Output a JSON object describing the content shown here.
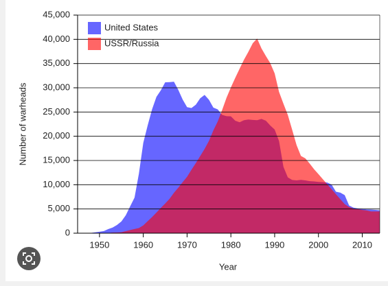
{
  "chart_data": {
    "type": "area",
    "x_label": "Year",
    "y_label": "Number of warheads",
    "x": [
      1945,
      1946,
      1947,
      1948,
      1949,
      1950,
      1951,
      1952,
      1953,
      1954,
      1955,
      1956,
      1957,
      1958,
      1959,
      1960,
      1961,
      1962,
      1963,
      1964,
      1965,
      1966,
      1967,
      1968,
      1969,
      1970,
      1971,
      1972,
      1973,
      1974,
      1975,
      1976,
      1977,
      1978,
      1979,
      1980,
      1981,
      1982,
      1983,
      1984,
      1985,
      1986,
      1987,
      1988,
      1989,
      1990,
      1991,
      1992,
      1993,
      1994,
      1995,
      1996,
      1997,
      1998,
      1999,
      2000,
      2001,
      2002,
      2003,
      2004,
      2005,
      2006,
      2007,
      2008,
      2009,
      2010,
      2011,
      2012,
      2013,
      2014
    ],
    "series": [
      {
        "name": "United States",
        "color": "#0000ff",
        "values": [
          2,
          9,
          13,
          50,
          170,
          299,
          438,
          841,
          1169,
          1703,
          2422,
          3692,
          5543,
          7345,
          12298,
          18638,
          22229,
          25540,
          28133,
          29463,
          31139,
          31175,
          31255,
          29561,
          27552,
          26008,
          25830,
          26516,
          27835,
          28537,
          27519,
          25914,
          25542,
          24418,
          24138,
          24104,
          23208,
          22886,
          23305,
          23459,
          23368,
          23317,
          23575,
          23205,
          22217,
          21392,
          19008,
          13708,
          11511,
          10979,
          10904,
          11011,
          10903,
          10732,
          10685,
          10577,
          10526,
          10457,
          10027,
          8570,
          8360,
          7853,
          5709,
          5273,
          5113,
          5066,
          4897,
          4881,
          4804,
          4717
        ]
      },
      {
        "name": "USSR/Russia",
        "color": "#ff0000",
        "values": [
          0,
          0,
          0,
          0,
          1,
          5,
          25,
          50,
          120,
          150,
          200,
          426,
          660,
          869,
          1060,
          1605,
          2471,
          3322,
          4238,
          5221,
          6129,
          7089,
          8339,
          9399,
          10538,
          11643,
          13092,
          14478,
          15915,
          17385,
          19055,
          21205,
          23044,
          25393,
          27935,
          30062,
          32049,
          33952,
          35804,
          37431,
          39197,
          40159,
          38107,
          36538,
          35078,
          32980,
          29154,
          26734,
          24403,
          21339,
          18179,
          15942,
          15442,
          14368,
          13188,
          12188,
          11152,
          10114,
          9076,
          8038,
          7000,
          6000,
          5400,
          5100,
          4950,
          4800,
          4700,
          4500,
          4500,
          4500
        ]
      }
    ],
    "opacity": 0.6,
    "xlim": [
      1945,
      2014
    ],
    "xticks": [
      1950,
      1960,
      1970,
      1980,
      1990,
      2000,
      2010
    ],
    "ylim": [
      0,
      45000
    ],
    "yticks": [
      0,
      {
        "value": 5000,
        "label": "5,000"
      },
      {
        "value": 10000,
        "label": "10,000"
      },
      {
        "value": 15000,
        "label": "15,000"
      },
      {
        "value": 20000,
        "label": "20,000"
      },
      {
        "value": 25000,
        "label": "25,000"
      },
      {
        "value": 30000,
        "label": "30,000"
      },
      {
        "value": 35000,
        "label": "35,000"
      },
      {
        "value": 40000,
        "label": "40,000"
      },
      {
        "value": 45000,
        "label": "45,000"
      }
    ],
    "grid": true,
    "legend": "top-left"
  }
}
